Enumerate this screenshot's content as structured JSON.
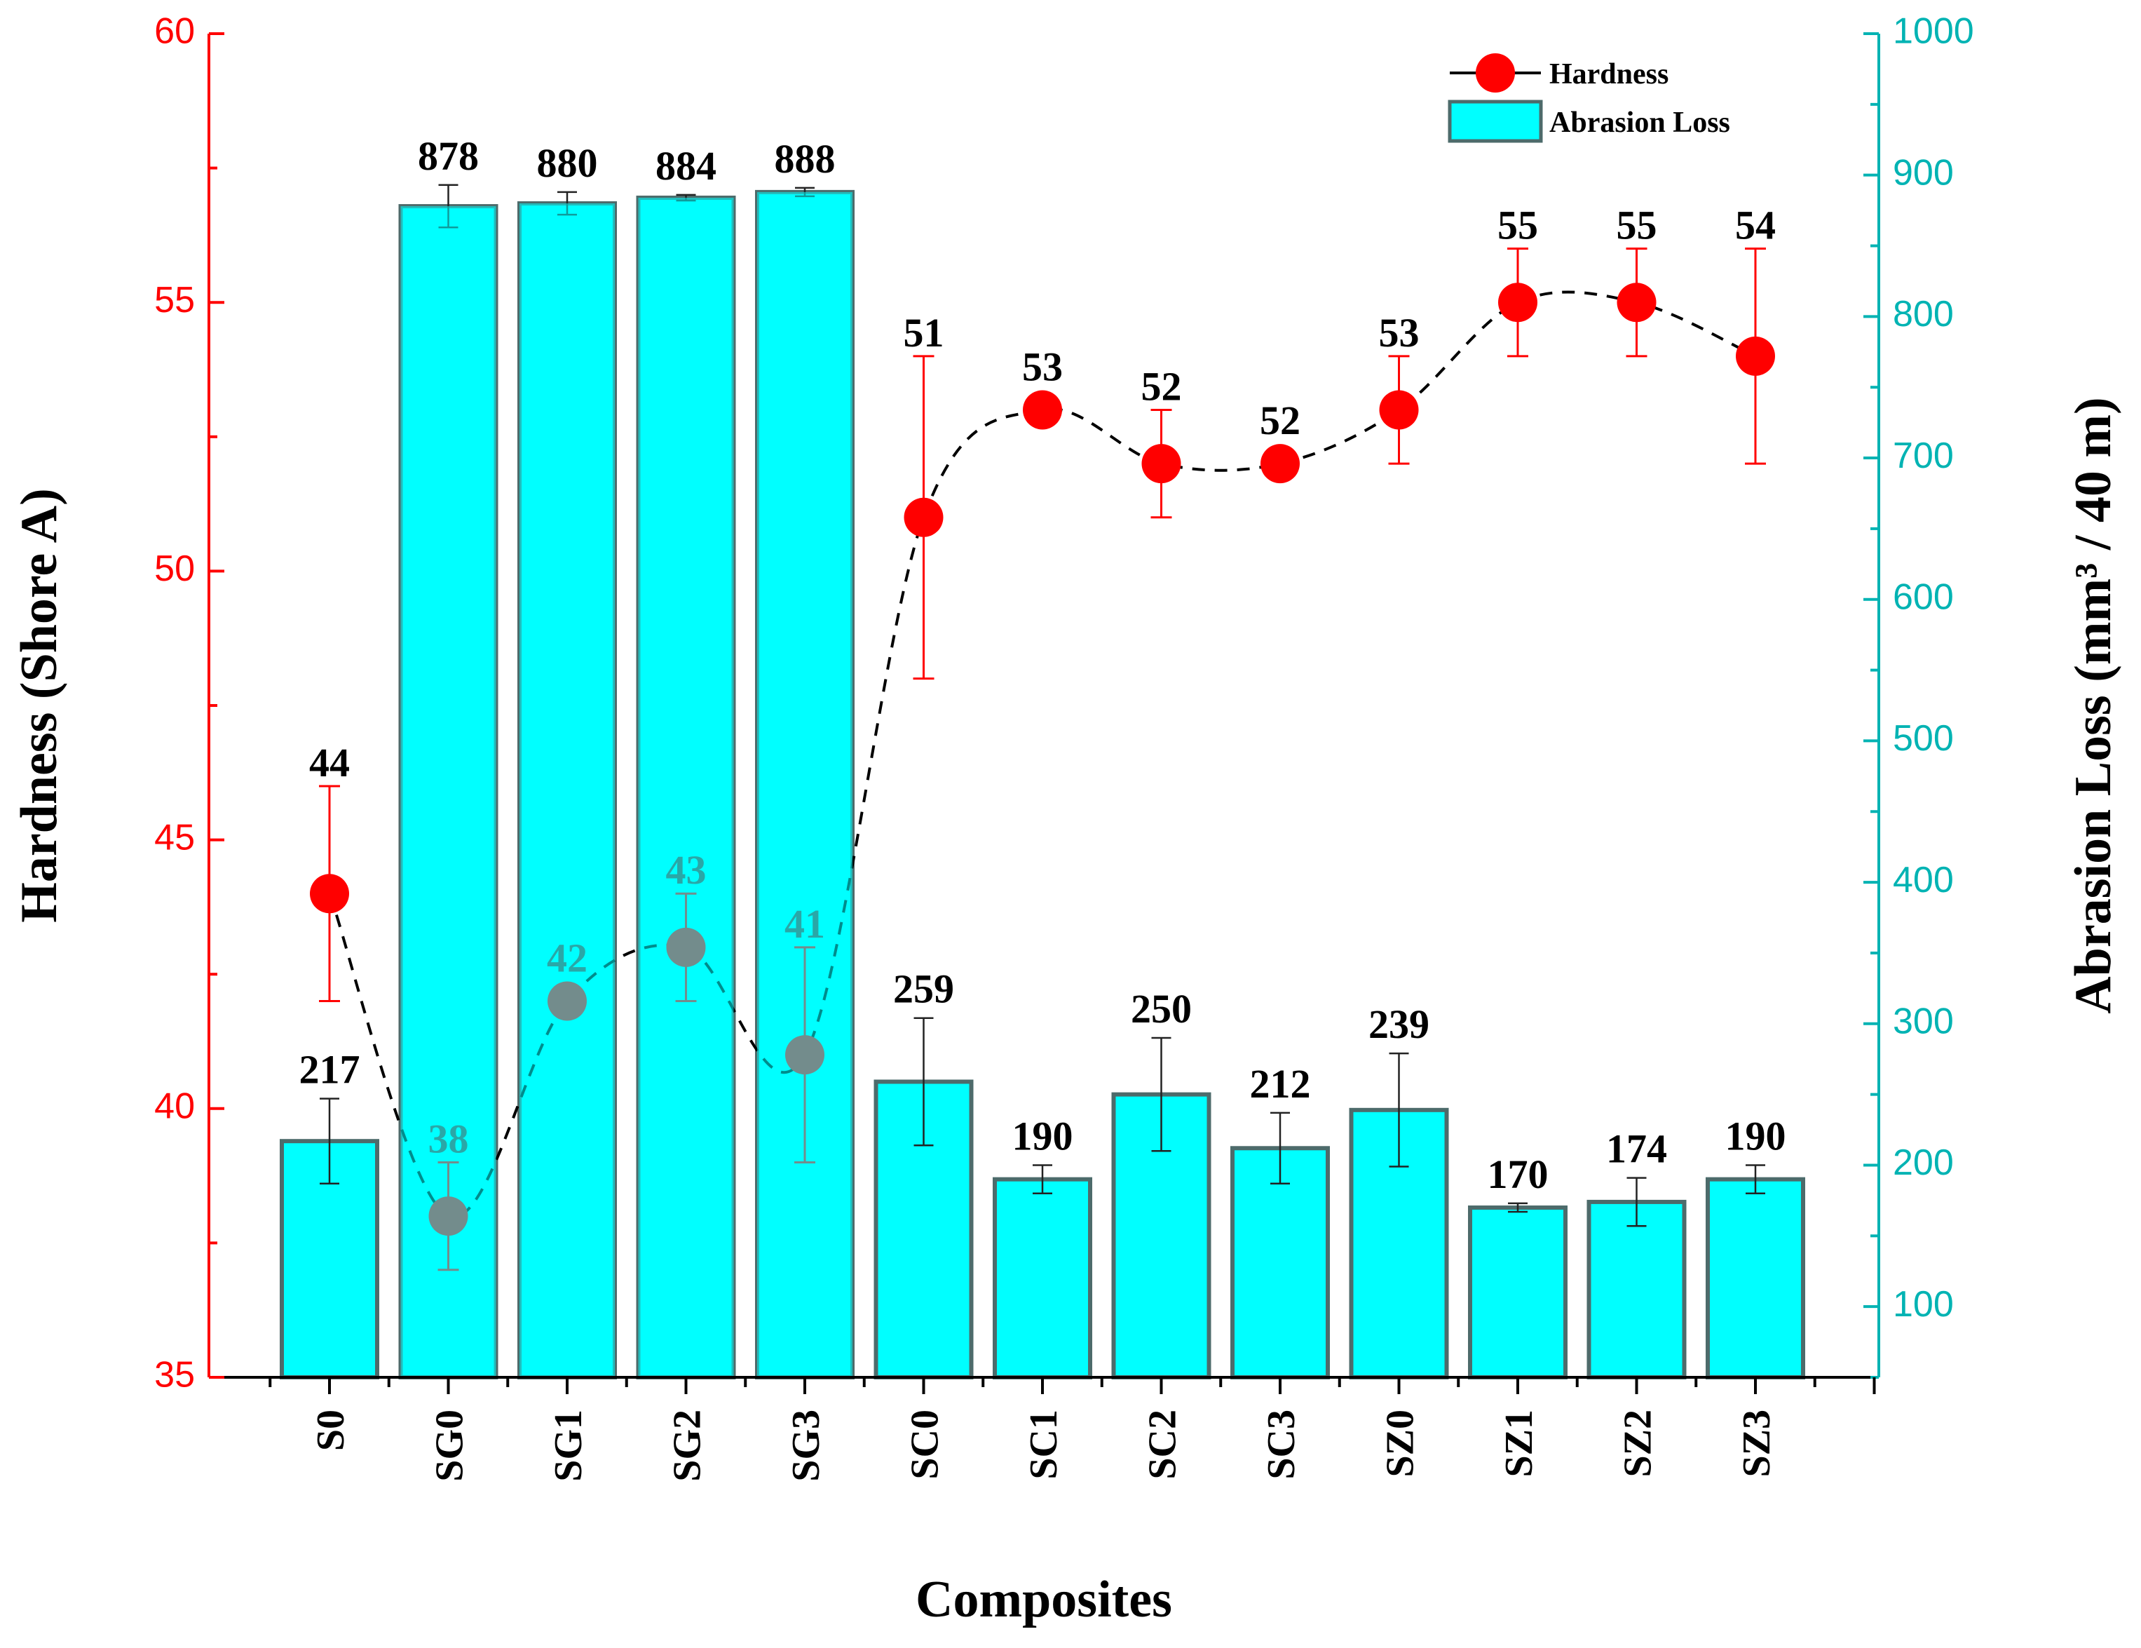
{
  "chart_data": {
    "type": "bar+line",
    "categories": [
      "S0",
      "SG0",
      "SG1",
      "SG2",
      "SG3",
      "SC0",
      "SC1",
      "SC2",
      "SC3",
      "SZ0",
      "SZ1",
      "SZ2",
      "SZ3"
    ],
    "xlabel": "Composites",
    "ylabel_left": "Hardness (Shore A)",
    "ylabel_right": "Abrasion Loss (mm³ / 40 m)",
    "ylim_left": [
      35,
      60
    ],
    "yticks_left": [
      35,
      40,
      45,
      50,
      55,
      60
    ],
    "ylim_right": [
      50,
      1000
    ],
    "yticks_right": [
      100,
      200,
      300,
      400,
      500,
      600,
      700,
      800,
      900,
      1000
    ],
    "series": [
      {
        "name": "Abrasion Loss",
        "type": "bar",
        "axis": "right",
        "color": "#00ffff",
        "values": [
          217,
          878,
          880,
          884,
          888,
          259,
          190,
          250,
          212,
          239,
          170,
          174,
          190
        ],
        "errors": [
          30,
          15,
          8,
          2,
          3,
          45,
          10,
          40,
          25,
          40,
          3,
          17,
          10
        ],
        "labels": [
          "217",
          "878",
          "880",
          "884",
          "888",
          "259",
          "190",
          "250",
          "212",
          "239",
          "170",
          "174",
          "190"
        ]
      },
      {
        "name": "Hardness",
        "type": "line",
        "axis": "left",
        "color": "#ff0000",
        "values": [
          44,
          38,
          42,
          43,
          41,
          51,
          53,
          52,
          52,
          53,
          55,
          55,
          54
        ],
        "errors": [
          2,
          1,
          0,
          1,
          2,
          3,
          0,
          1,
          0,
          1,
          1,
          1,
          2
        ],
        "labels": [
          "44",
          "38",
          "42",
          "43",
          "41",
          "51",
          "53",
          "52",
          "52",
          "53",
          "55",
          "55",
          "54"
        ]
      }
    ],
    "legend": {
      "position": "top-right",
      "entries": [
        "Hardness",
        "Abrasion Loss"
      ]
    },
    "colors": {
      "left_axis": "#ff0000",
      "right_axis": "#00b3b3",
      "bar_fill": "#00ffff",
      "bar_edge": "#4d6b6b",
      "point": "#ff0000"
    }
  }
}
